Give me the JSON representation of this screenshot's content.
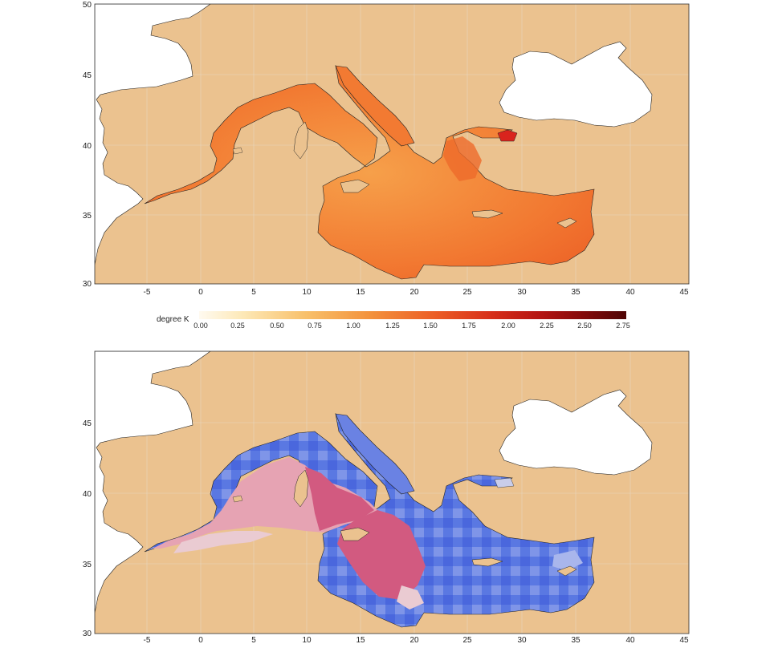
{
  "legend": {
    "title": "degree K",
    "ticks": [
      "0.00",
      "0.25",
      "0.50",
      "0.75",
      "1.00",
      "1.25",
      "1.50",
      "1.75",
      "2.00",
      "2.25",
      "2.50",
      "2.75"
    ],
    "range": [
      0,
      2.75
    ],
    "colors": [
      "#fff8ea",
      "#fde9b8",
      "#f9c777",
      "#f5a24a",
      "#f17a2c",
      "#ec5a22",
      "#de3a1b",
      "#c51c15",
      "#a4100f",
      "#7e0a0a",
      "#5a0606"
    ]
  },
  "top_map": {
    "x_ticks": [
      "-5",
      "0",
      "5",
      "10",
      "15",
      "20",
      "25",
      "30",
      "35",
      "40",
      "45"
    ],
    "y_ticks": [
      "30",
      "35",
      "40",
      "45",
      "50"
    ],
    "land_color": "#ebc28f",
    "sea_color": "#f27f36",
    "hotspot_color": "#d9241d"
  },
  "bottom_map": {
    "x_ticks": [
      "-5",
      "0",
      "5",
      "10",
      "15",
      "20",
      "25",
      "30",
      "35",
      "40",
      "45"
    ],
    "y_ticks": [
      "30",
      "35",
      "40",
      "45"
    ],
    "land_color": "#ebc28f",
    "blue_color": "#4f6fe0",
    "pink_color": "#d05a80",
    "light_color": "#eac8cf"
  }
}
